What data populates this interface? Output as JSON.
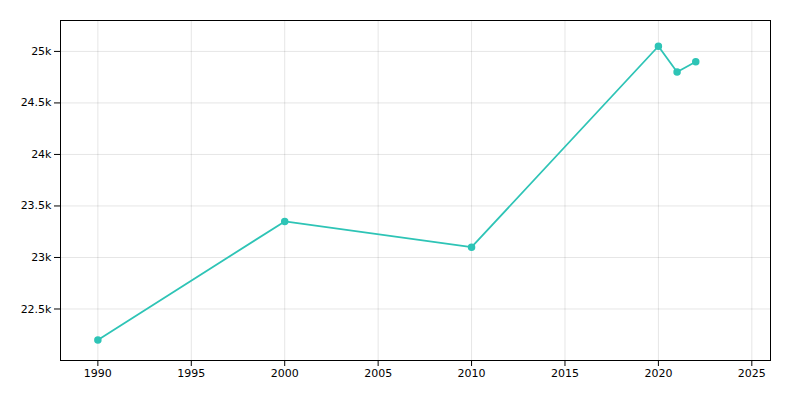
{
  "chart_data": {
    "type": "line",
    "x": [
      1990,
      2000,
      2010,
      2020,
      2021,
      2022
    ],
    "values": [
      22200,
      23350,
      23100,
      25050,
      24800,
      24900
    ],
    "color": "#2ec4b6",
    "marker": "circle",
    "xlim": [
      1988,
      2026
    ],
    "xticks": [
      1990,
      1995,
      2000,
      2005,
      2010,
      2015,
      2020,
      2025
    ],
    "ylim": [
      22000,
      25300
    ],
    "yticks": [
      {
        "value": 22500,
        "label": "22.5k"
      },
      {
        "value": 23000,
        "label": "23k"
      },
      {
        "value": 23500,
        "label": "23.5k"
      },
      {
        "value": 24000,
        "label": "24k"
      },
      {
        "value": 24500,
        "label": "24.5k"
      },
      {
        "value": 25000,
        "label": "25k"
      }
    ],
    "grid": true
  }
}
